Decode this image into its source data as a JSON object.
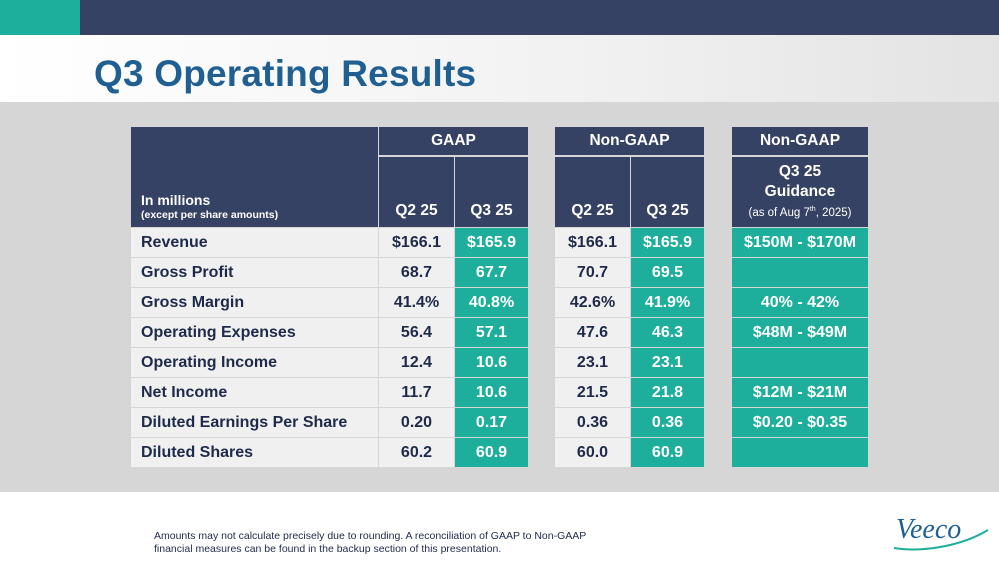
{
  "slide": {
    "title": "Q3 Operating Results",
    "accent_color": "#1dae9c",
    "header_color": "#364264",
    "title_color": "#1f5f92"
  },
  "table": {
    "corner_label": "In millions",
    "corner_sublabel": "(except per share amounts)",
    "groups": {
      "gaap": "GAAP",
      "nongaap": "Non-GAAP",
      "guidance": "Non-GAAP"
    },
    "columns": {
      "gaap_q2": "Q2 25",
      "gaap_q3": "Q3 25",
      "nongaap_q2": "Q2 25",
      "nongaap_q3": "Q3 25"
    },
    "guidance_header": {
      "line1": "Q3 25",
      "line2": "Guidance",
      "line3_prefix": "(as of Aug 7",
      "line3_sup": "th",
      "line3_suffix": ", 2025)"
    },
    "rows": [
      {
        "label": "Revenue",
        "gaap_q2": "$166.1",
        "gaap_q3": "$165.9",
        "nongaap_q2": "$166.1",
        "nongaap_q3": "$165.9",
        "guidance": "$150M - $170M"
      },
      {
        "label": "Gross Profit",
        "gaap_q2": "68.7",
        "gaap_q3": "67.7",
        "nongaap_q2": "70.7",
        "nongaap_q3": "69.5",
        "guidance": ""
      },
      {
        "label": "Gross Margin",
        "gaap_q2": "41.4%",
        "gaap_q3": "40.8%",
        "nongaap_q2": "42.6%",
        "nongaap_q3": "41.9%",
        "guidance": "40% - 42%"
      },
      {
        "label": "Operating Expenses",
        "gaap_q2": "56.4",
        "gaap_q3": "57.1",
        "nongaap_q2": "47.6",
        "nongaap_q3": "46.3",
        "guidance": "$48M - $49M"
      },
      {
        "label": "Operating Income",
        "gaap_q2": "12.4",
        "gaap_q3": "10.6",
        "nongaap_q2": "23.1",
        "nongaap_q3": "23.1",
        "guidance": ""
      },
      {
        "label": "Net Income",
        "gaap_q2": "11.7",
        "gaap_q3": "10.6",
        "nongaap_q2": "21.5",
        "nongaap_q3": "21.8",
        "guidance": "$12M - $21M"
      },
      {
        "label": "Diluted Earnings Per Share",
        "gaap_q2": "0.20",
        "gaap_q3": "0.17",
        "nongaap_q2": "0.36",
        "nongaap_q3": "0.36",
        "guidance": "$0.20 - $0.35"
      },
      {
        "label": "Diluted Shares",
        "gaap_q2": "60.2",
        "gaap_q3": "60.9",
        "nongaap_q2": "60.0",
        "nongaap_q3": "60.9",
        "guidance": ""
      }
    ]
  },
  "footer": {
    "note_line1": "Amounts may not calculate precisely due to rounding.  A reconciliation of GAAP to Non-GAAP",
    "note_line2": "financial measures can be found in the backup section of this presentation.",
    "logo_text": "Veeco"
  }
}
